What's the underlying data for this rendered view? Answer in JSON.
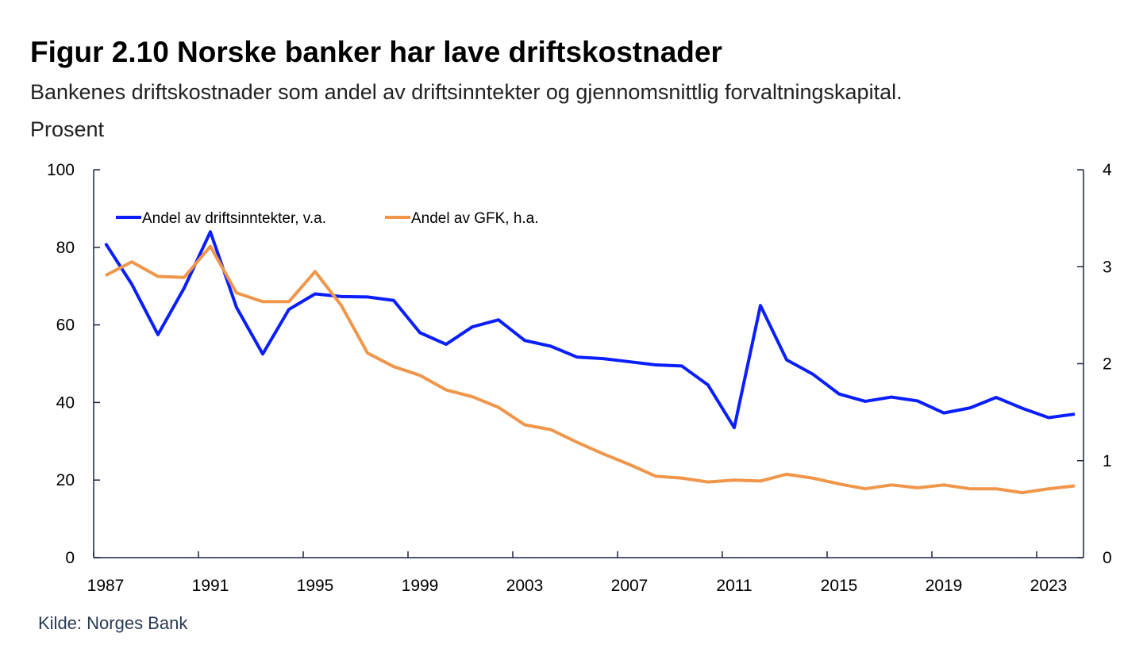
{
  "chart_data": {
    "type": "line",
    "title": "Figur 2.10 Norske banker har lave driftskostnader",
    "subtitle": "Bankenes driftskostnader som andel av driftsinntekter og gjennomsnittlig forvaltningskapital.",
    "unit": "Prosent",
    "source": "Kilde: Norges Bank",
    "x": [
      1987,
      1988,
      1989,
      1990,
      1991,
      1992,
      1993,
      1994,
      1995,
      1996,
      1997,
      1998,
      1999,
      2000,
      2001,
      2002,
      2003,
      2004,
      2005,
      2006,
      2007,
      2008,
      2009,
      2010,
      2011,
      2012,
      2013,
      2014,
      2015,
      2016,
      2017,
      2018,
      2019,
      2020,
      2021,
      2022,
      2023,
      2024
    ],
    "x_ticks": [
      "1987",
      "1991",
      "1995",
      "1999",
      "2003",
      "2007",
      "2011",
      "2015",
      "2019",
      "2023"
    ],
    "y_left": {
      "range": [
        0,
        100
      ],
      "ticks": [
        "0",
        "20",
        "40",
        "60",
        "80",
        "100"
      ]
    },
    "y_right": {
      "range": [
        0,
        4
      ],
      "ticks": [
        "0",
        "1",
        "2",
        "3",
        "4"
      ]
    },
    "legend_placement": "top-left",
    "series": [
      {
        "name": "Andel av driftsinntekter, v.a.",
        "axis": "left",
        "color": "#0a1eff",
        "values": [
          81,
          70.5,
          57.5,
          69.5,
          84,
          64.5,
          52.5,
          64,
          68,
          67.3,
          67.2,
          66.3,
          58,
          55,
          59.5,
          61.3,
          56,
          54.5,
          51.7,
          51.3,
          50.5,
          49.7,
          49.4,
          44.5,
          33.5,
          65,
          51,
          47.3,
          42.2,
          40.3,
          41.4,
          40.4,
          37.3,
          38.6,
          41.3,
          38.5,
          36.1,
          37
        ]
      },
      {
        "name": "Andel av GFK, h.a.",
        "axis": "right",
        "color": "#f0964b",
        "values": [
          2.91,
          3.05,
          2.9,
          2.89,
          3.21,
          2.73,
          2.64,
          2.64,
          2.95,
          2.6,
          2.11,
          1.97,
          1.88,
          1.73,
          1.66,
          1.55,
          1.37,
          1.32,
          1.19,
          1.07,
          0.96,
          0.84,
          0.82,
          0.78,
          0.8,
          0.79,
          0.86,
          0.82,
          0.76,
          0.71,
          0.75,
          0.72,
          0.75,
          0.71,
          0.71,
          0.67,
          0.71,
          0.74
        ]
      }
    ]
  }
}
